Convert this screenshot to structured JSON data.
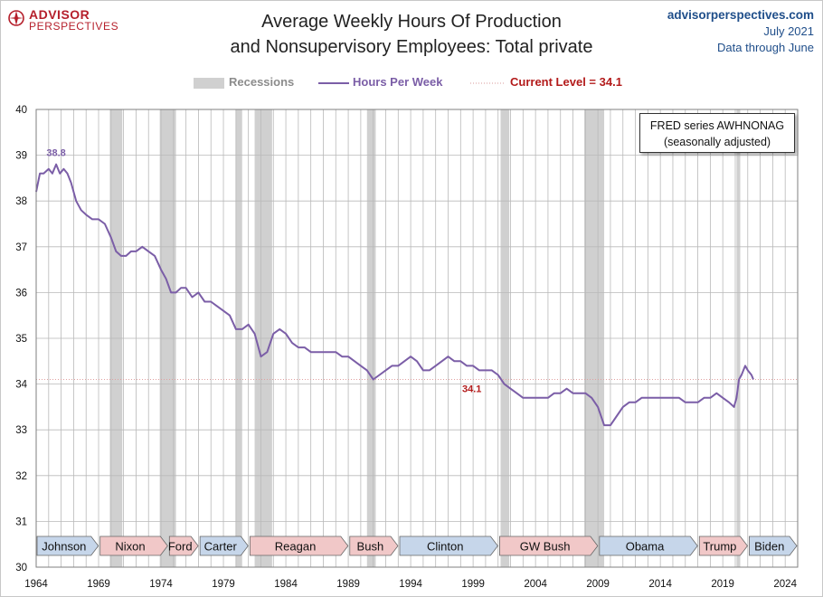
{
  "header": {
    "logo_top": "ADVISOR",
    "logo_bottom": "PERSPECTIVES",
    "title_line1": "Average Weekly Hours Of Production",
    "title_line2": "and Nonsupervisory Employees: Total private",
    "site": "advisorperspectives.com",
    "date": "July 2021",
    "data_through": "Data through June"
  },
  "legend": {
    "recessions": "Recessions",
    "series": "Hours Per Week",
    "current": "Current Level = 34.1"
  },
  "fred_box": {
    "line1": "FRED series  AWHNONAG",
    "line2": "(seasonally adjusted)"
  },
  "colors": {
    "series": "#7b5ea7",
    "recession": "#d0d0d0",
    "current_level": "#b31b1b",
    "president_blue": "#c6d6ea",
    "president_red": "#f1c8c8"
  },
  "chart_data": {
    "type": "line",
    "xlim": [
      1964,
      2025
    ],
    "ylim": [
      30,
      40
    ],
    "x_ticks": [
      "1964",
      "1969",
      "1974",
      "1979",
      "1984",
      "1989",
      "1994",
      "1999",
      "2004",
      "2009",
      "2014",
      "2019",
      "2024"
    ],
    "y_ticks": [
      "30",
      "31",
      "32",
      "33",
      "34",
      "35",
      "36",
      "37",
      "38",
      "39",
      "40"
    ],
    "grid": true,
    "legend_position": "top",
    "annotations": [
      {
        "label": "38.8",
        "x": 1965.6,
        "y": 38.8
      },
      {
        "label": "34.1",
        "x": 1998.9,
        "y": 34.1
      }
    ],
    "current_level": 34.1,
    "recessions": [
      [
        1969.9,
        1970.9
      ],
      [
        1973.9,
        1975.2
      ],
      [
        1980.0,
        1980.5
      ],
      [
        1981.5,
        1982.9
      ],
      [
        1990.5,
        1991.2
      ],
      [
        2001.2,
        2001.9
      ],
      [
        2007.9,
        2009.5
      ],
      [
        2020.1,
        2020.4
      ]
    ],
    "presidents": [
      {
        "name": "Johnson",
        "start": 1964.0,
        "end": 1969.05,
        "party": "D"
      },
      {
        "name": "Nixon",
        "start": 1969.05,
        "end": 1974.6,
        "party": "R"
      },
      {
        "name": "Ford",
        "start": 1974.6,
        "end": 1977.05,
        "party": "R"
      },
      {
        "name": "Carter",
        "start": 1977.05,
        "end": 1981.05,
        "party": "D"
      },
      {
        "name": "Reagan",
        "start": 1981.05,
        "end": 1989.05,
        "party": "R"
      },
      {
        "name": "Bush",
        "start": 1989.05,
        "end": 1993.05,
        "party": "R"
      },
      {
        "name": "Clinton",
        "start": 1993.05,
        "end": 2001.05,
        "party": "D"
      },
      {
        "name": "GW Bush",
        "start": 2001.05,
        "end": 2009.05,
        "party": "R"
      },
      {
        "name": "Obama",
        "start": 2009.05,
        "end": 2017.05,
        "party": "D"
      },
      {
        "name": "Trump",
        "start": 2017.05,
        "end": 2021.05,
        "party": "R"
      },
      {
        "name": "Biden",
        "start": 2021.05,
        "end": 2025.0,
        "party": "D"
      }
    ],
    "series": [
      {
        "name": "Hours Per Week",
        "x": [
          1964.0,
          1964.3,
          1964.6,
          1965.0,
          1965.3,
          1965.6,
          1965.9,
          1966.2,
          1966.5,
          1966.8,
          1967.2,
          1967.6,
          1968.0,
          1968.5,
          1969.0,
          1969.5,
          1970.0,
          1970.4,
          1970.8,
          1971.2,
          1971.6,
          1972.0,
          1972.5,
          1973.0,
          1973.5,
          1974.0,
          1974.4,
          1974.8,
          1975.2,
          1975.6,
          1976.0,
          1976.5,
          1977.0,
          1977.5,
          1978.0,
          1978.5,
          1979.0,
          1979.5,
          1980.0,
          1980.5,
          1981.0,
          1981.5,
          1982.0,
          1982.5,
          1983.0,
          1983.5,
          1984.0,
          1984.5,
          1985.0,
          1985.5,
          1986.0,
          1986.5,
          1987.0,
          1987.5,
          1988.0,
          1988.5,
          1989.0,
          1989.5,
          1990.0,
          1990.5,
          1991.0,
          1991.5,
          1992.0,
          1992.5,
          1993.0,
          1993.5,
          1994.0,
          1994.5,
          1995.0,
          1995.5,
          1996.0,
          1996.5,
          1997.0,
          1997.5,
          1998.0,
          1998.5,
          1999.0,
          1999.5,
          2000.0,
          2000.5,
          2001.0,
          2001.5,
          2002.0,
          2002.5,
          2003.0,
          2003.5,
          2004.0,
          2004.5,
          2005.0,
          2005.5,
          2006.0,
          2006.5,
          2007.0,
          2007.5,
          2008.0,
          2008.5,
          2009.0,
          2009.5,
          2010.0,
          2010.5,
          2011.0,
          2011.5,
          2012.0,
          2012.5,
          2013.0,
          2013.5,
          2014.0,
          2014.5,
          2015.0,
          2015.5,
          2016.0,
          2016.5,
          2017.0,
          2017.5,
          2018.0,
          2018.5,
          2019.0,
          2019.5,
          2019.9,
          2020.1,
          2020.3,
          2020.5,
          2020.8,
          2021.0,
          2021.3,
          2021.45
        ],
        "y": [
          38.2,
          38.6,
          38.6,
          38.7,
          38.6,
          38.8,
          38.6,
          38.7,
          38.6,
          38.4,
          38.0,
          37.8,
          37.7,
          37.6,
          37.6,
          37.5,
          37.2,
          36.9,
          36.8,
          36.8,
          36.9,
          36.9,
          37.0,
          36.9,
          36.8,
          36.5,
          36.3,
          36.0,
          36.0,
          36.1,
          36.1,
          35.9,
          36.0,
          35.8,
          35.8,
          35.7,
          35.6,
          35.5,
          35.2,
          35.2,
          35.3,
          35.1,
          34.6,
          34.7,
          35.1,
          35.2,
          35.1,
          34.9,
          34.8,
          34.8,
          34.7,
          34.7,
          34.7,
          34.7,
          34.7,
          34.6,
          34.6,
          34.5,
          34.4,
          34.3,
          34.1,
          34.2,
          34.3,
          34.4,
          34.4,
          34.5,
          34.6,
          34.5,
          34.3,
          34.3,
          34.4,
          34.5,
          34.6,
          34.5,
          34.5,
          34.4,
          34.4,
          34.3,
          34.3,
          34.3,
          34.2,
          34.0,
          33.9,
          33.8,
          33.7,
          33.7,
          33.7,
          33.7,
          33.7,
          33.8,
          33.8,
          33.9,
          33.8,
          33.8,
          33.8,
          33.7,
          33.5,
          33.1,
          33.1,
          33.3,
          33.5,
          33.6,
          33.6,
          33.7,
          33.7,
          33.7,
          33.7,
          33.7,
          33.7,
          33.7,
          33.6,
          33.6,
          33.6,
          33.7,
          33.7,
          33.8,
          33.7,
          33.6,
          33.5,
          33.7,
          34.1,
          34.2,
          34.4,
          34.3,
          34.2,
          34.1
        ]
      }
    ]
  }
}
